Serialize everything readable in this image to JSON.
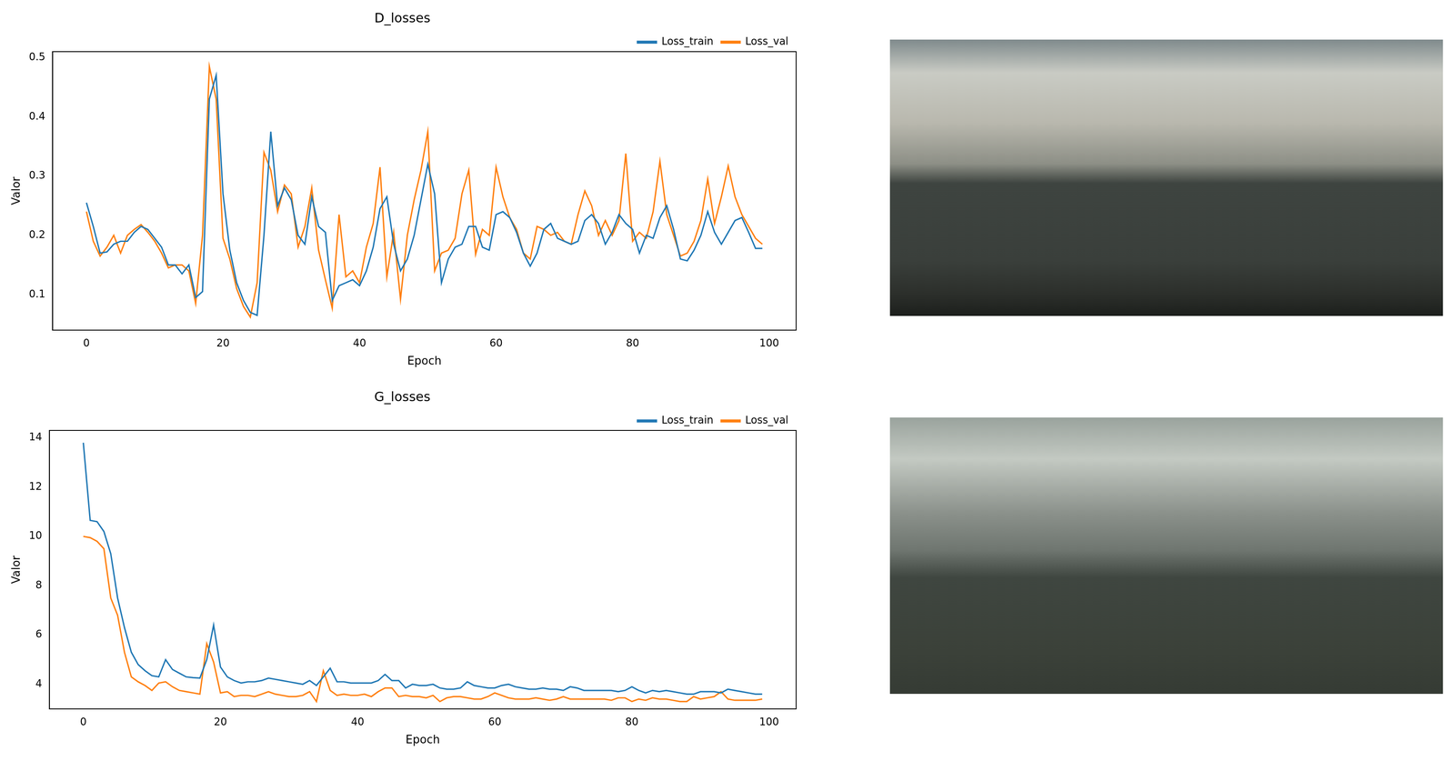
{
  "chart_data": [
    {
      "type": "line",
      "title": "D_losses",
      "x_label": "Epoch",
      "y_label": "Valor",
      "x": [
        0,
        1,
        2,
        3,
        4,
        5,
        6,
        7,
        8,
        9,
        10,
        11,
        12,
        13,
        14,
        15,
        16,
        17,
        18,
        19,
        20,
        21,
        22,
        23,
        24,
        25,
        26,
        27,
        28,
        29,
        30,
        31,
        32,
        33,
        34,
        35,
        36,
        37,
        38,
        39,
        40,
        41,
        42,
        43,
        44,
        45,
        46,
        47,
        48,
        49,
        50,
        51,
        52,
        53,
        54,
        55,
        56,
        57,
        58,
        59,
        60,
        61,
        62,
        63,
        64,
        65,
        66,
        67,
        68,
        69,
        70,
        71,
        72,
        73,
        74,
        75,
        76,
        77,
        78,
        79,
        80,
        81,
        82,
        83,
        84,
        85,
        86,
        87,
        88,
        89,
        90,
        91,
        92,
        93,
        94,
        95,
        96,
        97,
        98,
        99
      ],
      "series": [
        {
          "name": "Loss_train",
          "color": "#1f77b4",
          "values": [
            0.255,
            0.215,
            0.17,
            0.172,
            0.185,
            0.19,
            0.19,
            0.205,
            0.215,
            0.21,
            0.195,
            0.18,
            0.15,
            0.15,
            0.135,
            0.15,
            0.095,
            0.105,
            0.43,
            0.47,
            0.27,
            0.175,
            0.12,
            0.09,
            0.07,
            0.065,
            0.2,
            0.375,
            0.25,
            0.28,
            0.26,
            0.2,
            0.185,
            0.265,
            0.215,
            0.205,
            0.09,
            0.115,
            0.12,
            0.125,
            0.115,
            0.14,
            0.18,
            0.245,
            0.265,
            0.185,
            0.14,
            0.16,
            0.2,
            0.26,
            0.32,
            0.27,
            0.12,
            0.16,
            0.18,
            0.185,
            0.215,
            0.215,
            0.18,
            0.175,
            0.235,
            0.24,
            0.23,
            0.205,
            0.17,
            0.148,
            0.17,
            0.21,
            0.22,
            0.195,
            0.19,
            0.185,
            0.19,
            0.225,
            0.235,
            0.22,
            0.185,
            0.205,
            0.235,
            0.22,
            0.21,
            0.17,
            0.2,
            0.195,
            0.23,
            0.25,
            0.21,
            0.16,
            0.157,
            0.175,
            0.2,
            0.24,
            0.205,
            0.185,
            0.205,
            0.225,
            0.23,
            0.205,
            0.178,
            0.178
          ]
        },
        {
          "name": "Loss_val",
          "color": "#ff7f0e",
          "values": [
            0.24,
            0.19,
            0.165,
            0.18,
            0.2,
            0.17,
            0.2,
            0.21,
            0.218,
            0.205,
            0.19,
            0.17,
            0.145,
            0.15,
            0.15,
            0.14,
            0.085,
            0.2,
            0.485,
            0.43,
            0.195,
            0.16,
            0.11,
            0.08,
            0.062,
            0.12,
            0.34,
            0.31,
            0.24,
            0.285,
            0.27,
            0.18,
            0.215,
            0.28,
            0.175,
            0.125,
            0.077,
            0.235,
            0.13,
            0.14,
            0.12,
            0.18,
            0.22,
            0.315,
            0.13,
            0.205,
            0.092,
            0.2,
            0.26,
            0.31,
            0.375,
            0.14,
            0.17,
            0.175,
            0.195,
            0.27,
            0.31,
            0.168,
            0.21,
            0.2,
            0.315,
            0.265,
            0.23,
            0.21,
            0.17,
            0.16,
            0.215,
            0.21,
            0.2,
            0.205,
            0.19,
            0.185,
            0.235,
            0.275,
            0.25,
            0.2,
            0.225,
            0.2,
            0.225,
            0.338,
            0.19,
            0.205,
            0.195,
            0.24,
            0.325,
            0.235,
            0.2,
            0.165,
            0.17,
            0.19,
            0.225,
            0.295,
            0.22,
            0.265,
            0.317,
            0.265,
            0.235,
            0.215,
            0.195,
            0.185
          ]
        }
      ],
      "xlim": [
        -4.95,
        103.95
      ],
      "xticks": [
        0,
        20,
        40,
        60,
        80,
        100
      ],
      "ylim": [
        0.04,
        0.51
      ],
      "yticks": [
        0.1,
        0.2,
        0.3,
        0.4,
        0.5
      ],
      "grid": false,
      "legend": "upper right"
    },
    {
      "type": "line",
      "title": "G_losses",
      "x_label": "Epoch",
      "y_label": "Valor",
      "x": [
        0,
        1,
        2,
        3,
        4,
        5,
        6,
        7,
        8,
        9,
        10,
        11,
        12,
        13,
        14,
        15,
        16,
        17,
        18,
        19,
        20,
        21,
        22,
        23,
        24,
        25,
        26,
        27,
        28,
        29,
        30,
        31,
        32,
        33,
        34,
        35,
        36,
        37,
        38,
        39,
        40,
        41,
        42,
        43,
        44,
        45,
        46,
        47,
        48,
        49,
        50,
        51,
        52,
        53,
        54,
        55,
        56,
        57,
        58,
        59,
        60,
        61,
        62,
        63,
        64,
        65,
        66,
        67,
        68,
        69,
        70,
        71,
        72,
        73,
        74,
        75,
        76,
        77,
        78,
        79,
        80,
        81,
        82,
        83,
        84,
        85,
        86,
        87,
        88,
        89,
        90,
        91,
        92,
        93,
        94,
        95,
        96,
        97,
        98,
        99
      ],
      "series": [
        {
          "name": "Loss_train",
          "color": "#1f77b4",
          "values": [
            13.8,
            10.65,
            10.6,
            10.2,
            9.3,
            7.5,
            6.3,
            5.3,
            4.8,
            4.55,
            4.35,
            4.3,
            5.0,
            4.6,
            4.45,
            4.3,
            4.27,
            4.25,
            5.0,
            6.4,
            4.7,
            4.3,
            4.15,
            4.05,
            4.1,
            4.1,
            4.15,
            4.25,
            4.2,
            4.15,
            4.1,
            4.05,
            4.0,
            4.15,
            3.95,
            4.3,
            4.65,
            4.1,
            4.1,
            4.05,
            4.05,
            4.05,
            4.05,
            4.15,
            4.4,
            4.15,
            4.15,
            3.85,
            4.0,
            3.95,
            3.95,
            4.0,
            3.85,
            3.8,
            3.8,
            3.85,
            4.1,
            3.95,
            3.9,
            3.85,
            3.85,
            3.95,
            4.0,
            3.9,
            3.85,
            3.8,
            3.8,
            3.85,
            3.8,
            3.8,
            3.75,
            3.9,
            3.85,
            3.75,
            3.75,
            3.75,
            3.75,
            3.75,
            3.7,
            3.75,
            3.9,
            3.75,
            3.65,
            3.75,
            3.7,
            3.75,
            3.7,
            3.65,
            3.6,
            3.6,
            3.7,
            3.7,
            3.7,
            3.65,
            3.8,
            3.75,
            3.7,
            3.65,
            3.6,
            3.6
          ]
        },
        {
          "name": "Loss_val",
          "color": "#ff7f0e",
          "values": [
            10.0,
            9.95,
            9.8,
            9.5,
            7.5,
            6.8,
            5.3,
            4.3,
            4.1,
            3.95,
            3.75,
            4.05,
            4.1,
            3.9,
            3.75,
            3.7,
            3.65,
            3.6,
            5.65,
            4.9,
            3.65,
            3.7,
            3.5,
            3.55,
            3.55,
            3.5,
            3.6,
            3.7,
            3.6,
            3.55,
            3.5,
            3.5,
            3.55,
            3.7,
            3.3,
            4.55,
            3.75,
            3.55,
            3.6,
            3.55,
            3.55,
            3.6,
            3.5,
            3.7,
            3.85,
            3.85,
            3.5,
            3.55,
            3.5,
            3.5,
            3.45,
            3.55,
            3.3,
            3.45,
            3.5,
            3.5,
            3.45,
            3.4,
            3.4,
            3.5,
            3.65,
            3.55,
            3.45,
            3.4,
            3.4,
            3.4,
            3.45,
            3.4,
            3.35,
            3.4,
            3.5,
            3.4,
            3.4,
            3.4,
            3.4,
            3.4,
            3.4,
            3.35,
            3.45,
            3.45,
            3.3,
            3.4,
            3.35,
            3.45,
            3.4,
            3.4,
            3.35,
            3.3,
            3.3,
            3.5,
            3.4,
            3.45,
            3.5,
            3.7,
            3.4,
            3.35,
            3.35,
            3.35,
            3.35,
            3.4
          ]
        }
      ],
      "xlim": [
        -4.95,
        103.95
      ],
      "xticks": [
        0,
        20,
        40,
        60,
        80,
        100
      ],
      "ylim": [
        3.0,
        14.3
      ],
      "yticks": [
        4,
        6,
        8,
        10,
        12,
        14
      ],
      "grid": false,
      "legend": "upper right"
    }
  ]
}
